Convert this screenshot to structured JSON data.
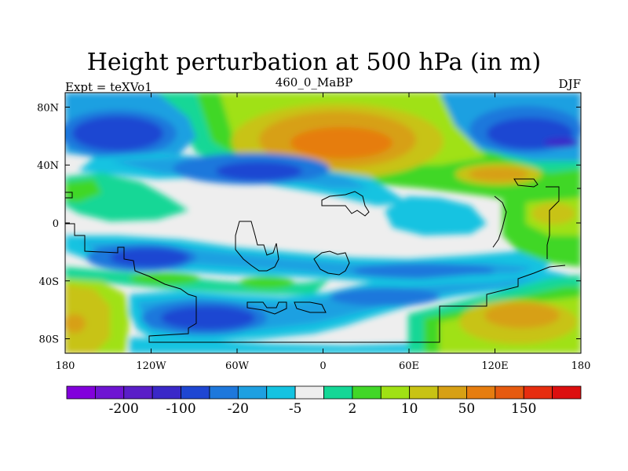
{
  "title": "Height perturbation at 500 hPa (in m)",
  "left_label": "Expt = teXVo1",
  "center_label": "460_0_MaBP",
  "right_label": "DJF",
  "axes": {
    "x_ticks": [
      "180",
      "120W",
      "60W",
      "0",
      "60E",
      "120E",
      "180"
    ],
    "y_ticks": [
      "80N",
      "40N",
      "0",
      "40S",
      "80S"
    ]
  },
  "colorbar": {
    "colors": [
      "#8200dc",
      "#6e14d2",
      "#5a1ec8",
      "#3a28c8",
      "#1e46d2",
      "#1e78dc",
      "#1ea0e1",
      "#14c3e1",
      "#eeeeee",
      "#14d796",
      "#41d728",
      "#a0e114",
      "#c8c314",
      "#d7a014",
      "#e67d0f",
      "#e65a0f",
      "#e62d0f",
      "#dc0f0f"
    ],
    "labels": [
      "-200",
      "-100",
      "-20",
      "-5",
      "2",
      "10",
      "50",
      "150"
    ]
  }
}
